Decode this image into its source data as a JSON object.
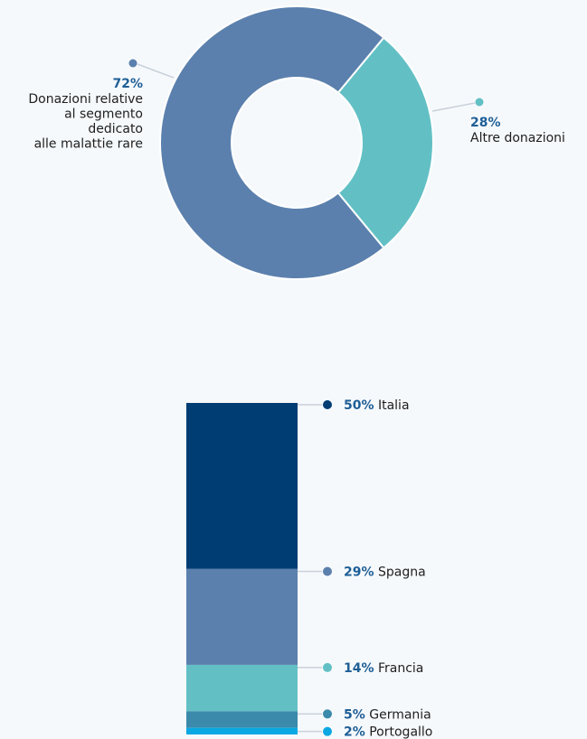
{
  "chart_data": [
    {
      "type": "pie",
      "donut": true,
      "slices": [
        {
          "pct_label": "72%",
          "label_lines": [
            "Donazioni relative",
            "al segmento",
            "dedicato",
            "alle malattie rare"
          ],
          "value": 72,
          "color": "#5b80ad"
        },
        {
          "pct_label": "28%",
          "label_lines": [
            "Altre donazioni"
          ],
          "value": 28,
          "color": "#62c0c5"
        }
      ]
    },
    {
      "type": "bar",
      "stacked": true,
      "segments": [
        {
          "pct_label": "50%",
          "label": "Italia",
          "value": 50,
          "color": "#003d73"
        },
        {
          "pct_label": "29%",
          "label": "Spagna",
          "value": 29,
          "color": "#5b80ad"
        },
        {
          "pct_label": "14%",
          "label": "Francia",
          "value": 14,
          "color": "#62c0c5"
        },
        {
          "pct_label": "5%",
          "label": "Germania",
          "value": 5,
          "color": "#3b8aab"
        },
        {
          "pct_label": "2%",
          "label": "Portogallo",
          "value": 2,
          "color": "#0aa8e2"
        }
      ]
    }
  ]
}
